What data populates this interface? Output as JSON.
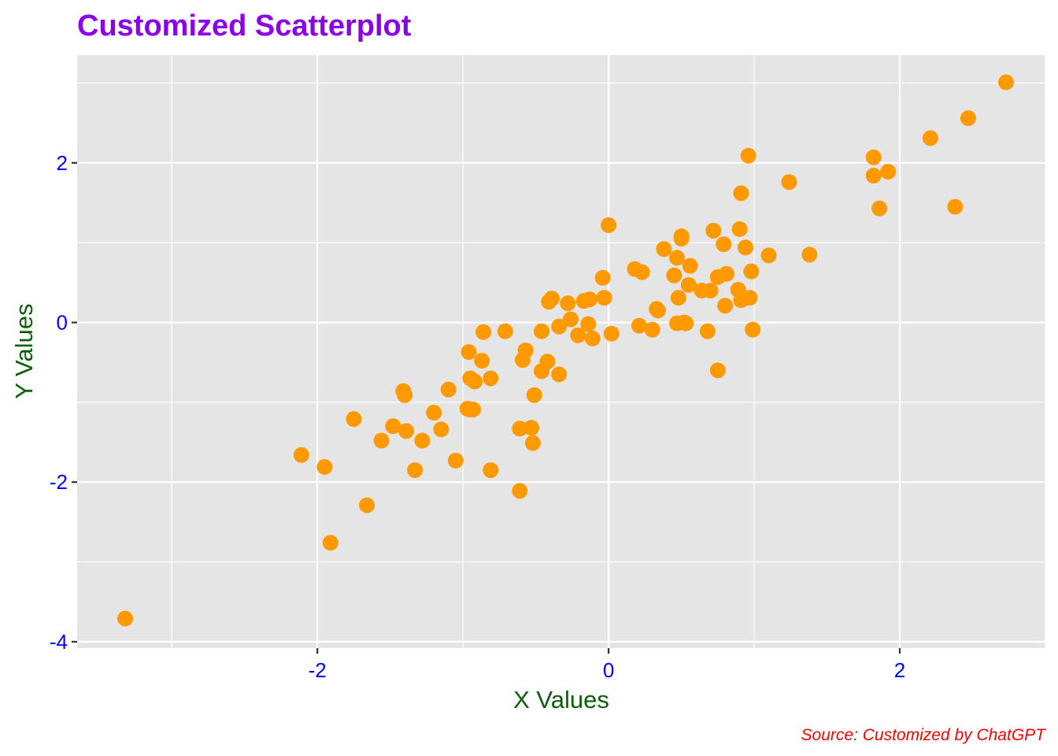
{
  "colors": {
    "title": "#8B00EA",
    "axis_title": "#0B5E0B",
    "tick_label": "#0000FF",
    "caption": "#FF0000",
    "point": "#FF9900",
    "panel": "#E5E5E5",
    "grid": "#FFFFFF",
    "tick": "#333333"
  },
  "chart_data": {
    "type": "scatter",
    "title": "Customized Scatterplot",
    "xlabel": "X Values",
    "ylabel": "Y Values",
    "caption": "Source: Customized by ChatGPT",
    "xlim": [
      -3.65,
      3.0
    ],
    "ylim": [
      -4.08,
      3.35
    ],
    "x_ticks": [
      -2,
      0,
      2
    ],
    "x_tick_labels": [
      "-2",
      "0",
      "2"
    ],
    "y_ticks": [
      -4,
      -2,
      0,
      2
    ],
    "y_tick_labels": [
      "-4",
      "-2",
      "0",
      "2"
    ],
    "grid": true,
    "legend": "none",
    "series": [
      {
        "points": [
          [
            -3.32,
            -3.71
          ],
          [
            -2.11,
            -1.66
          ],
          [
            -1.95,
            -1.81
          ],
          [
            -1.91,
            -2.76
          ],
          [
            -1.75,
            -1.21
          ],
          [
            -1.66,
            -2.29
          ],
          [
            -1.56,
            -1.48
          ],
          [
            -1.48,
            -1.3
          ],
          [
            -1.41,
            -0.86
          ],
          [
            -1.4,
            -0.91
          ],
          [
            -1.39,
            -1.36
          ],
          [
            -1.33,
            -1.85
          ],
          [
            -1.28,
            -1.48
          ],
          [
            -1.2,
            -1.13
          ],
          [
            -1.15,
            -1.34
          ],
          [
            -1.1,
            -0.84
          ],
          [
            -1.05,
            -1.73
          ],
          [
            -0.97,
            -1.08
          ],
          [
            -0.96,
            -0.37
          ],
          [
            -0.95,
            -0.7
          ],
          [
            -0.95,
            -1.09
          ],
          [
            -0.93,
            -1.09
          ],
          [
            -0.92,
            -0.74
          ],
          [
            -0.87,
            -0.48
          ],
          [
            -0.86,
            -0.12
          ],
          [
            -0.81,
            -0.7
          ],
          [
            -0.81,
            -1.85
          ],
          [
            -0.71,
            -0.11
          ],
          [
            -0.61,
            -1.33
          ],
          [
            -0.61,
            -2.11
          ],
          [
            -0.59,
            -0.47
          ],
          [
            -0.57,
            -0.35
          ],
          [
            -0.53,
            -1.32
          ],
          [
            -0.52,
            -1.51
          ],
          [
            -0.51,
            -0.91
          ],
          [
            -0.46,
            -0.61
          ],
          [
            -0.46,
            -0.11
          ],
          [
            -0.42,
            -0.49
          ],
          [
            -0.41,
            0.26
          ],
          [
            -0.39,
            0.3
          ],
          [
            -0.34,
            -0.05
          ],
          [
            -0.34,
            -0.65
          ],
          [
            -0.28,
            0.24
          ],
          [
            -0.26,
            0.04
          ],
          [
            -0.21,
            -0.16
          ],
          [
            -0.17,
            0.27
          ],
          [
            -0.14,
            -0.02
          ],
          [
            -0.13,
            0.29
          ],
          [
            -0.11,
            -0.2
          ],
          [
            -0.04,
            0.56
          ],
          [
            -0.03,
            0.31
          ],
          [
            0.0,
            1.22
          ],
          [
            0.02,
            -0.14
          ],
          [
            0.18,
            0.67
          ],
          [
            0.21,
            -0.04
          ],
          [
            0.23,
            0.63
          ],
          [
            0.3,
            -0.09
          ],
          [
            0.33,
            0.17
          ],
          [
            0.34,
            0.15
          ],
          [
            0.38,
            0.92
          ],
          [
            0.45,
            0.59
          ],
          [
            0.47,
            0.81
          ],
          [
            0.47,
            -0.01
          ],
          [
            0.48,
            0.31
          ],
          [
            0.5,
            1.08
          ],
          [
            0.5,
            1.05
          ],
          [
            0.52,
            0.0
          ],
          [
            0.53,
            -0.01
          ],
          [
            0.55,
            0.47
          ],
          [
            0.56,
            0.71
          ],
          [
            0.64,
            0.4
          ],
          [
            0.68,
            -0.11
          ],
          [
            0.7,
            0.4
          ],
          [
            0.72,
            1.15
          ],
          [
            0.75,
            0.57
          ],
          [
            0.75,
            -0.6
          ],
          [
            0.79,
            0.98
          ],
          [
            0.8,
            0.21
          ],
          [
            0.81,
            0.61
          ],
          [
            0.89,
            0.41
          ],
          [
            0.9,
            1.17
          ],
          [
            0.91,
            1.62
          ],
          [
            0.91,
            0.28
          ],
          [
            0.94,
            0.94
          ],
          [
            0.96,
            2.09
          ],
          [
            0.97,
            0.31
          ],
          [
            0.98,
            0.64
          ],
          [
            0.99,
            -0.09
          ],
          [
            1.1,
            0.84
          ],
          [
            1.24,
            1.76
          ],
          [
            1.38,
            0.85
          ],
          [
            1.82,
            2.07
          ],
          [
            1.82,
            1.84
          ],
          [
            1.86,
            1.43
          ],
          [
            1.92,
            1.89
          ],
          [
            2.21,
            2.31
          ],
          [
            2.38,
            1.45
          ],
          [
            2.47,
            2.56
          ],
          [
            2.73,
            3.01
          ]
        ]
      }
    ]
  }
}
